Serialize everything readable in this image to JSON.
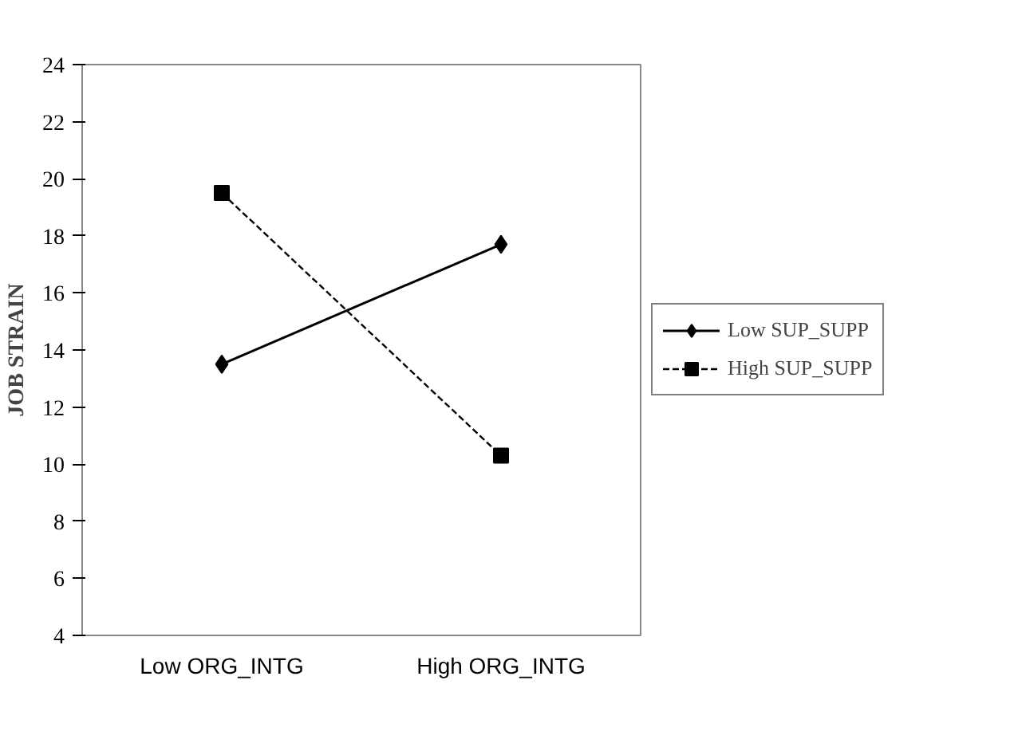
{
  "chart_data": {
    "type": "line",
    "ylabel": "JOB STRAIN",
    "categories": [
      "Low ORG_INTG",
      "High ORG_INTG"
    ],
    "series": [
      {
        "name": "Low SUP_SUPP",
        "color": "#000000",
        "values": [
          13.5,
          17.7
        ],
        "marker": "diamond",
        "line_style": "solid"
      },
      {
        "name": "High SUP_SUPP",
        "color": "#000000",
        "values": [
          19.5,
          10.3
        ],
        "marker": "square",
        "line_style": "dashed"
      }
    ],
    "ylim": [
      4,
      24
    ],
    "yticks": [
      4,
      6,
      8,
      10,
      12,
      14,
      16,
      18,
      20,
      22,
      24
    ],
    "grid": false,
    "legend": "right"
  }
}
